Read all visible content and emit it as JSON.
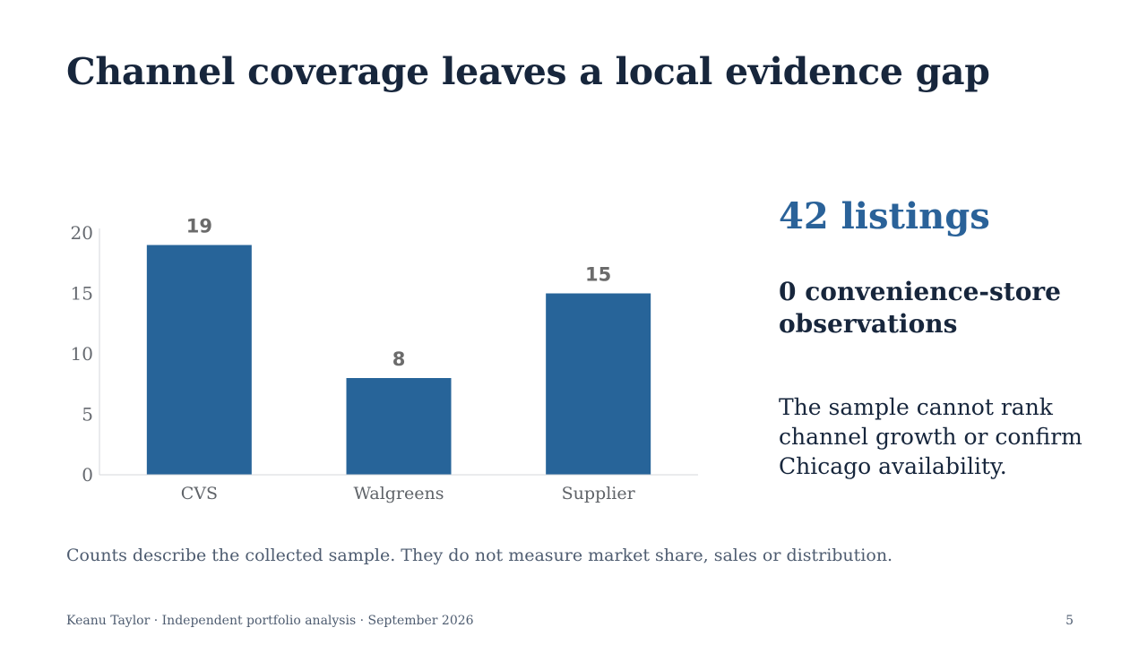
{
  "slide": {
    "title": "Channel coverage leaves a local evidence gap",
    "kpi": "42 listings",
    "subhead": "0 convenience-store observations",
    "body": "The sample cannot rank channel growth or confirm Chicago availability.",
    "note": "Counts describe the collected sample. They do not measure market share, sales or distribution.",
    "footer": "Keanu Taylor · Independent portfolio analysis · September 2026",
    "page_number": "5"
  },
  "colors": {
    "bar": "#276499",
    "axis": "#d4d7db",
    "kpi": "#2a6299",
    "heading": "#17263c"
  },
  "chart_data": {
    "type": "bar",
    "categories": [
      "CVS",
      "Walgreens",
      "Supplier"
    ],
    "values": [
      19,
      8,
      15
    ],
    "data_labels": [
      "19",
      "8",
      "15"
    ],
    "yticks": [
      0,
      5,
      10,
      15,
      20
    ],
    "ylim": [
      0,
      20
    ],
    "grid": false,
    "legend": "none",
    "title": "",
    "xlabel": "",
    "ylabel": ""
  }
}
